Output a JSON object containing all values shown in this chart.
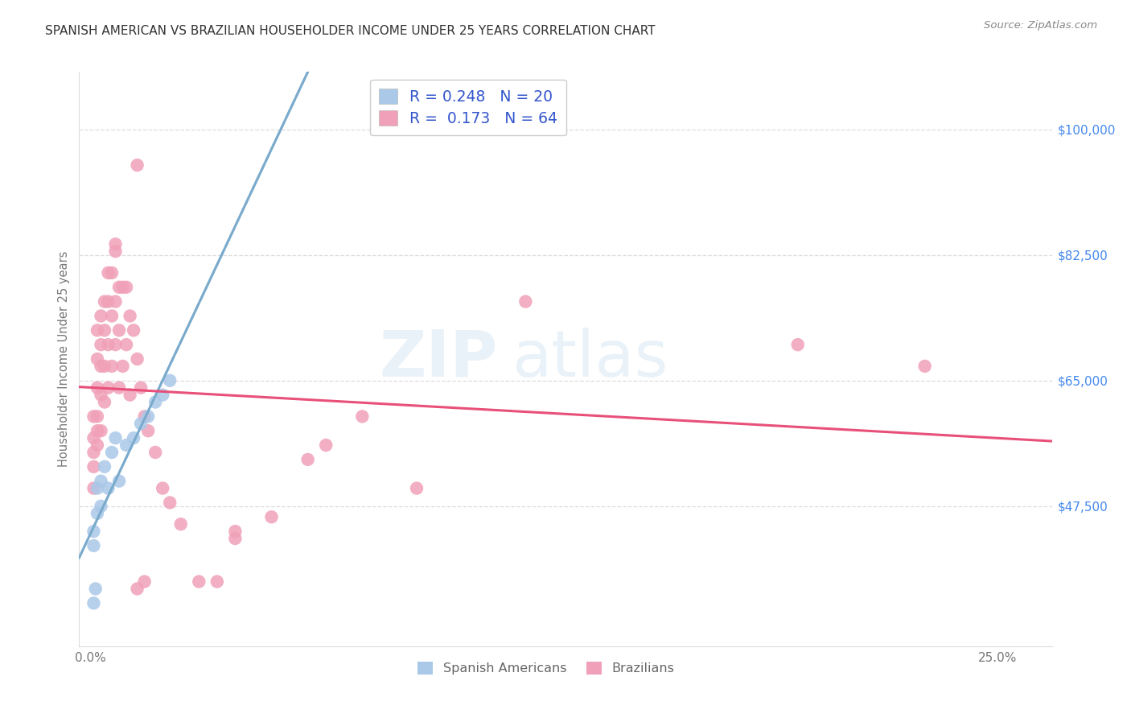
{
  "title": "SPANISH AMERICAN VS BRAZILIAN HOUSEHOLDER INCOME UNDER 25 YEARS CORRELATION CHART",
  "source": "Source: ZipAtlas.com",
  "ylabel": "Householder Income Under 25 years",
  "ytick_labels": [
    "$47,500",
    "$65,000",
    "$82,500",
    "$100,000"
  ],
  "ytick_values": [
    47500,
    65000,
    82500,
    100000
  ],
  "ymin": 28000,
  "ymax": 108000,
  "xmin": -0.003,
  "xmax": 0.265,
  "legend_r_blue": "0.248",
  "legend_n_blue": "20",
  "legend_r_pink": "0.173",
  "legend_n_pink": "64",
  "blue_scatter_color": "#aac8e8",
  "pink_scatter_color": "#f0a0b8",
  "blue_line_color": "#7aabcc",
  "pink_line_color": "#e8507a",
  "blue_dash_color": "#99bbdd",
  "title_color": "#333333",
  "source_color": "#888888",
  "tick_color": "#4488ee",
  "axis_color": "#777777",
  "grid_color": "#dddddd",
  "legend_text_color": "#3355cc",
  "bottom_legend_color": "#666666",
  "spanish_x": [
    0.001,
    0.001,
    0.0015,
    0.002,
    0.002,
    0.003,
    0.003,
    0.004,
    0.005,
    0.006,
    0.007,
    0.008,
    0.01,
    0.012,
    0.014,
    0.016,
    0.018,
    0.02,
    0.022,
    0.001
  ],
  "spanish_y": [
    44000,
    42000,
    36000,
    50000,
    46500,
    51000,
    47500,
    53000,
    50000,
    55000,
    57000,
    51000,
    56000,
    57000,
    59000,
    60000,
    62000,
    63000,
    65000,
    34000
  ],
  "brazilian_x": [
    0.001,
    0.001,
    0.001,
    0.001,
    0.001,
    0.002,
    0.002,
    0.002,
    0.002,
    0.002,
    0.002,
    0.003,
    0.003,
    0.003,
    0.003,
    0.003,
    0.004,
    0.004,
    0.004,
    0.004,
    0.005,
    0.005,
    0.005,
    0.005,
    0.006,
    0.006,
    0.006,
    0.007,
    0.007,
    0.007,
    0.008,
    0.008,
    0.008,
    0.009,
    0.009,
    0.01,
    0.01,
    0.011,
    0.011,
    0.012,
    0.013,
    0.013,
    0.014,
    0.015,
    0.015,
    0.016,
    0.018,
    0.02,
    0.022,
    0.025,
    0.03,
    0.035,
    0.04,
    0.05,
    0.06,
    0.065,
    0.075,
    0.09,
    0.12,
    0.195,
    0.23,
    0.013,
    0.007,
    0.04
  ],
  "brazilian_y": [
    60000,
    57000,
    55000,
    53000,
    50000,
    72000,
    68000,
    64000,
    60000,
    58000,
    56000,
    74000,
    70000,
    67000,
    63000,
    58000,
    76000,
    72000,
    67000,
    62000,
    80000,
    76000,
    70000,
    64000,
    80000,
    74000,
    67000,
    83000,
    76000,
    70000,
    78000,
    72000,
    64000,
    78000,
    67000,
    78000,
    70000,
    74000,
    63000,
    72000,
    68000,
    36000,
    64000,
    60000,
    37000,
    58000,
    55000,
    50000,
    48000,
    45000,
    37000,
    37000,
    43000,
    46000,
    54000,
    56000,
    60000,
    50000,
    76000,
    70000,
    67000,
    95000,
    84000,
    44000
  ]
}
